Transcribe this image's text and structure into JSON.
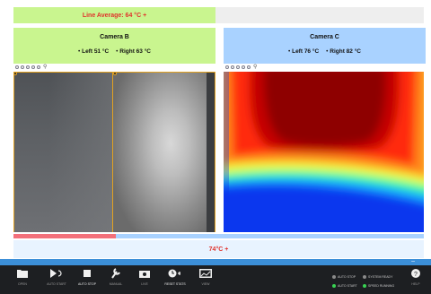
{
  "line_average": {
    "text": "Line Average: 64 °C +"
  },
  "camera_b": {
    "title": "Camera B",
    "left_temp": "Left 51 °C",
    "right_temp": "Right 63 °C"
  },
  "camera_c": {
    "title": "Camera C",
    "left_temp": "Left 76 °C",
    "right_temp": "Right 82 °C"
  },
  "progress": {
    "fraction": 0.25,
    "fill_color": "#f3707a",
    "track_color": "#a9d2ff"
  },
  "result": {
    "text": "74°C +"
  },
  "taskbar": {
    "buttons": [
      {
        "icon": "folder-icon",
        "label": "OPEN"
      },
      {
        "icon": "auto-start-icon",
        "label": "AUTO START"
      },
      {
        "icon": "stop-icon",
        "label": "AUTO STOP"
      },
      {
        "icon": "wrench-icon",
        "label": "MANUAL"
      },
      {
        "icon": "camera-icon",
        "label": "LIVE"
      },
      {
        "icon": "reset-icon",
        "label": "RESET STATS"
      },
      {
        "icon": "image-icon",
        "label": "VIEW"
      }
    ],
    "status": [
      {
        "label": "AUTO STOP",
        "color": "#8a8a8a"
      },
      {
        "label": "SYSTEM READY",
        "color": "#8a8a8a"
      },
      {
        "label": "AUTO START",
        "color": "#39d353"
      },
      {
        "label": "SPEED RUNNING",
        "color": "#39d353"
      }
    ],
    "help_label": "HELP",
    "accent_color": "#3c8fd8"
  }
}
